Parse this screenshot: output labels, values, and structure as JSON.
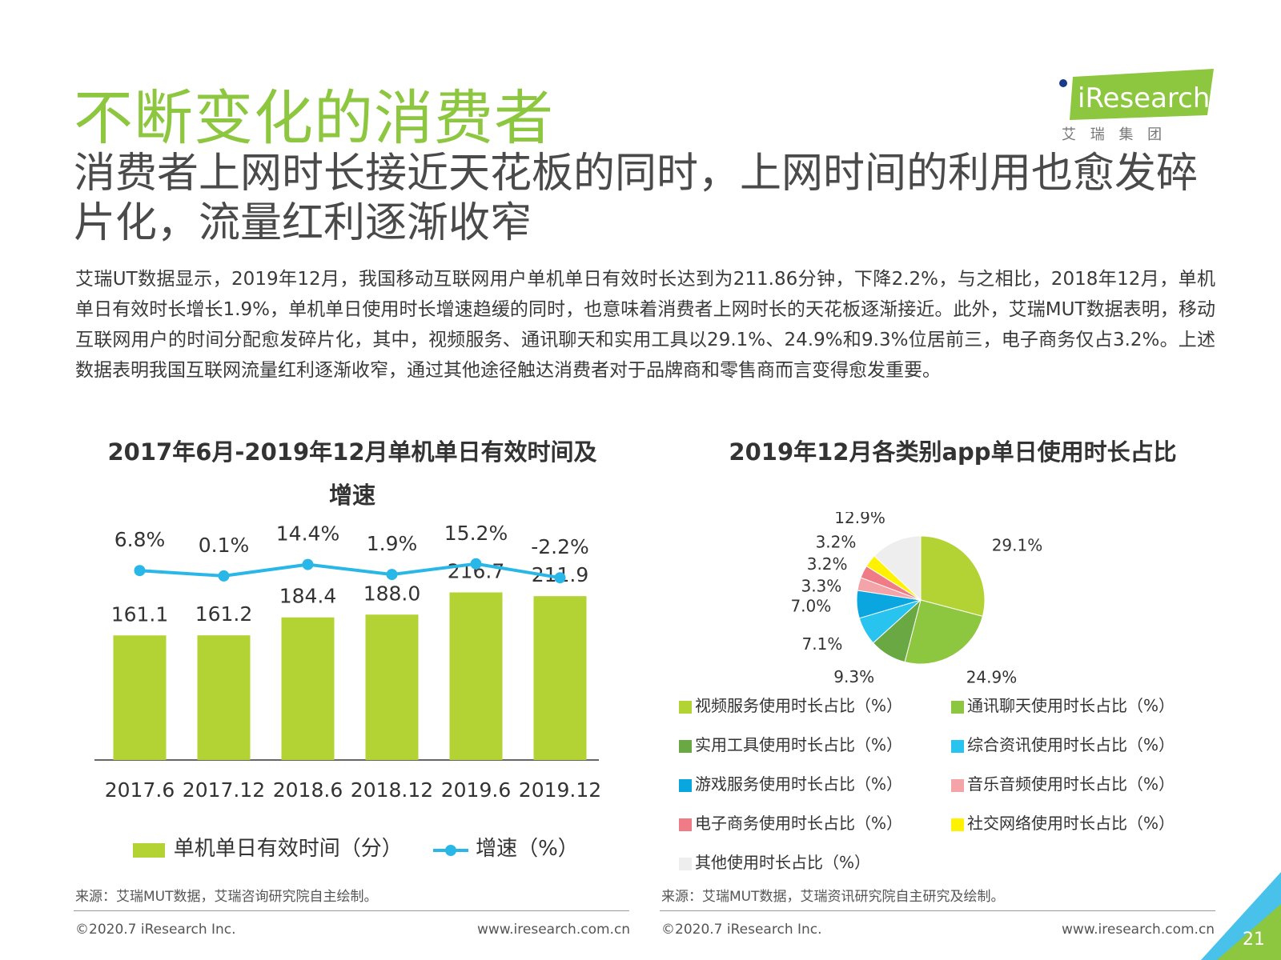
{
  "title": "不断变化的消费者",
  "subtitle": "消费者上网时长接近天花板的同时，上网时间的利用也愈发碎片化，流量红利逐渐收窄",
  "body": "艾瑞UT数据显示，2019年12月，我国移动互联网用户单机单日有效时长达到为211.86分钟，下降2.2%，与之相比，2018年12月，单机单日有效时长增长1.9%，单机单日使用时长增速趋缓的同时，也意味着消费者上网时长的天花板逐渐接近。此外，艾瑞MUT数据表明，移动互联网用户的时间分配愈发碎片化，其中，视频服务、通讯聊天和实用工具以29.1%、24.9%和9.3%位居前三，电子商务仅占3.2%。上述数据表明我国互联网流量红利逐渐收窄，通过其他途径触达消费者对于品牌商和零售商而言变得愈发重要。",
  "logo": {
    "text": "iResearch",
    "sub": "艾 瑞 集 团",
    "color": "#8dc63f"
  },
  "chart_data": [
    {
      "type": "bar",
      "title": "2017年6月-2019年12月单机单日有效时间及增速",
      "categories": [
        "2017.6",
        "2017.12",
        "2018.6",
        "2018.12",
        "2019.6",
        "2019.12"
      ],
      "series": [
        {
          "name": "单机单日有效时间（分）",
          "type": "bar",
          "color": "#b3d334",
          "values": [
            161.1,
            161.2,
            184.4,
            188.0,
            216.7,
            211.9
          ],
          "labels": [
            "161.1",
            "161.2",
            "184.4",
            "188.0",
            "216.7",
            "211.9"
          ]
        },
        {
          "name": "增速（%）",
          "type": "line",
          "color": "#29b7e8",
          "values": [
            6.8,
            0.1,
            14.4,
            1.9,
            15.2,
            -2.2
          ],
          "labels": [
            "6.8%",
            "0.1%",
            "14.4%",
            "1.9%",
            "15.2%",
            "-2.2%"
          ]
        }
      ],
      "ylim": [
        0,
        300
      ],
      "line_ylim": [
        -30,
        20
      ],
      "grid": false,
      "legend_position": "bottom"
    },
    {
      "type": "pie",
      "title": "2019年12月各类别app单日使用时长占比",
      "slices": [
        {
          "name": "视频服务使用时长占比（%）",
          "value": 29.1,
          "label": "29.1%",
          "color": "#b3d334"
        },
        {
          "name": "通讯聊天使用时长占比（%）",
          "value": 24.9,
          "label": "24.9%",
          "color": "#8dc63f"
        },
        {
          "name": "实用工具使用时长占比（%）",
          "value": 9.3,
          "label": "9.3%",
          "color": "#6aa843"
        },
        {
          "name": "综合资讯使用时长占比（%）",
          "value": 7.1,
          "label": "7.1%",
          "color": "#29c3f0"
        },
        {
          "name": "游戏服务使用时长占比（%）",
          "value": 7.0,
          "label": "7.0%",
          "color": "#0aa6df"
        },
        {
          "name": "音乐音频使用时长占比（%）",
          "value": 3.3,
          "label": "3.3%",
          "color": "#f4a3a8"
        },
        {
          "name": "电子商务使用时长占比（%）",
          "value": 3.2,
          "label": "3.2%",
          "color": "#ef7b86"
        },
        {
          "name": "社交网络使用时长占比（%）",
          "value": 3.2,
          "label": "3.2%",
          "color": "#fff200"
        },
        {
          "name": "其他使用时长占比（%）",
          "value": 12.9,
          "label": "12.9%",
          "color": "#eeeeee"
        }
      ],
      "legend_position": "bottom"
    }
  ],
  "sources": {
    "left": "来源：艾瑞MUT数据，艾瑞咨询研究院自主绘制。",
    "right": "来源：艾瑞MUT数据，艾瑞资讯研究院自主研究及绘制。"
  },
  "footer": {
    "copyright_left": "©2020.7 iResearch Inc.",
    "url_left": "www.iresearch.com.cn",
    "copyright_right": "©2020.7 iResearch Inc.",
    "url_right": "www.iresearch.com.cn",
    "page_number": "21"
  }
}
